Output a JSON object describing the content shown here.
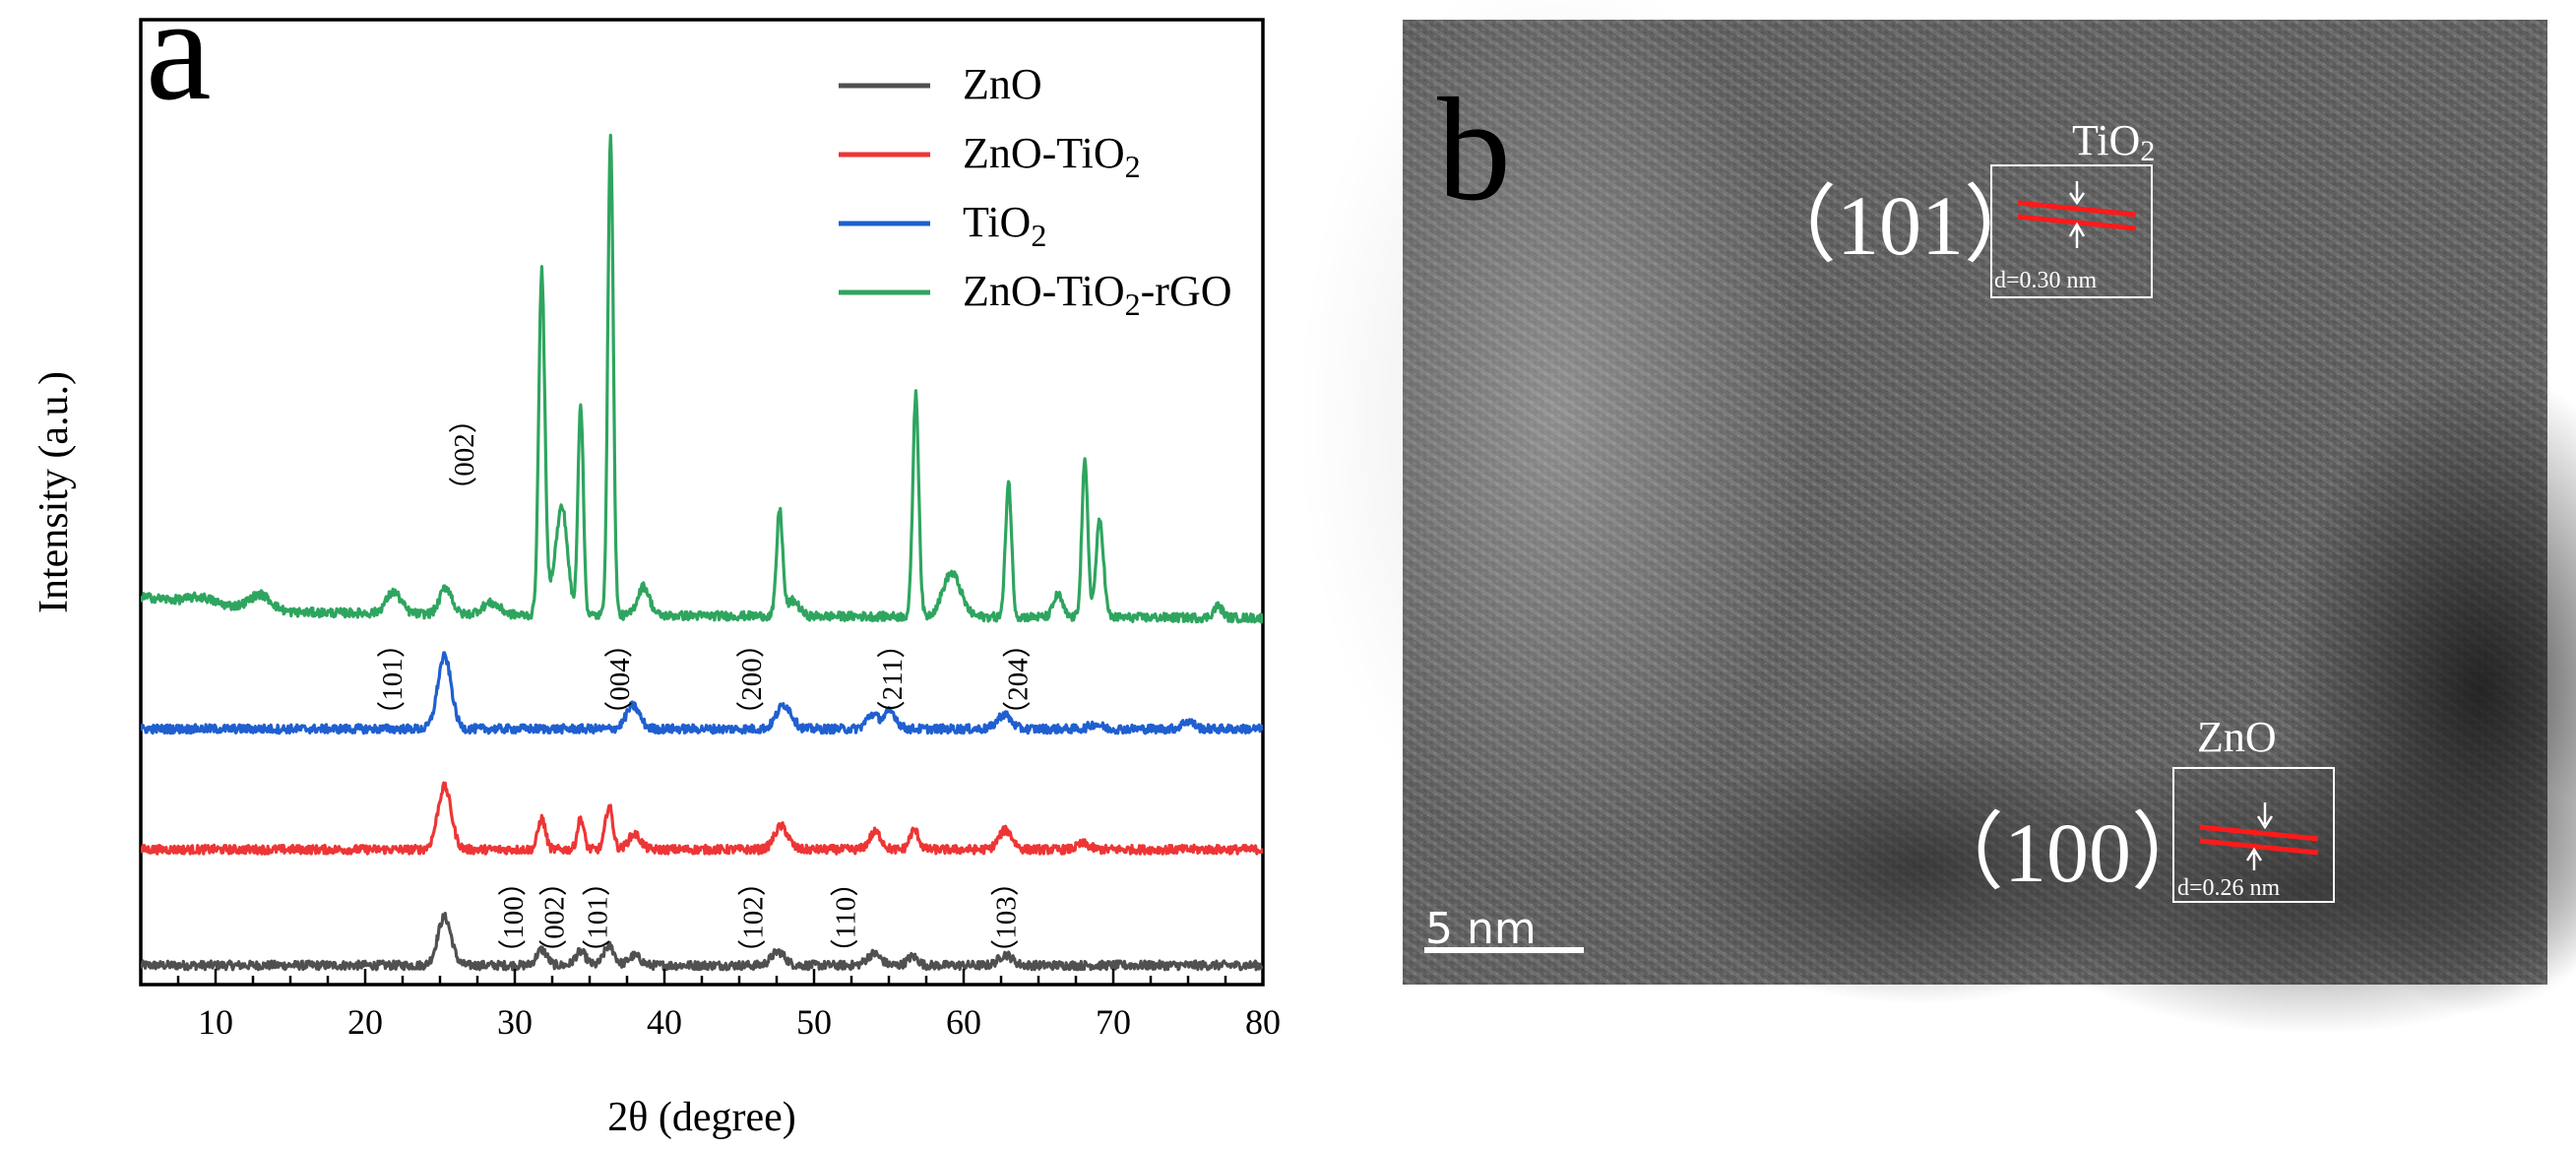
{
  "chart_data": {
    "type": "line",
    "panel": "a",
    "xlabel": "2θ (degree)",
    "ylabel": "Intensity (a.u.)",
    "xlim": [
      5,
      80
    ],
    "ylim": [
      0,
      100
    ],
    "xticks": [
      10,
      20,
      30,
      40,
      50,
      60,
      70,
      80
    ],
    "legend_position": "top-right",
    "series": [
      {
        "name": "ZnO",
        "legend_main": "ZnO",
        "legend_sub": "",
        "legend_tail": "",
        "color": "#505050",
        "baseline": 2.0,
        "peaks": [
          [
            25.3,
            5.0,
            0.45
          ],
          [
            31.8,
            1.6,
            0.35
          ],
          [
            34.4,
            1.4,
            0.35
          ],
          [
            36.3,
            2.0,
            0.35
          ],
          [
            38.0,
            1.0,
            0.4
          ],
          [
            47.6,
            1.4,
            0.45
          ],
          [
            54.0,
            1.2,
            0.45
          ],
          [
            56.6,
            0.9,
            0.35
          ],
          [
            62.8,
            1.1,
            0.45
          ]
        ]
      },
      {
        "name": "ZnO-TiO2",
        "legend_main": "ZnO-TiO",
        "legend_sub": "2",
        "legend_tail": "",
        "color": "#ee3535",
        "baseline": 14.0,
        "peaks": [
          [
            25.3,
            6.5,
            0.45
          ],
          [
            31.8,
            3.2,
            0.25
          ],
          [
            34.4,
            3.2,
            0.22
          ],
          [
            36.3,
            4.5,
            0.25
          ],
          [
            38.0,
            1.6,
            0.4
          ],
          [
            47.8,
            2.4,
            0.45
          ],
          [
            54.1,
            1.8,
            0.4
          ],
          [
            56.7,
            2.0,
            0.3
          ],
          [
            62.8,
            2.0,
            0.45
          ],
          [
            68.0,
            0.6,
            0.4
          ]
        ]
      },
      {
        "name": "TiO2",
        "legend_main": "TiO",
        "legend_sub": "2",
        "legend_tail": "",
        "color": "#1f5fd0",
        "baseline": 26.5,
        "peaks": [
          [
            25.3,
            7.5,
            0.45
          ],
          [
            37.9,
            2.4,
            0.45
          ],
          [
            48.0,
            2.5,
            0.5
          ],
          [
            53.9,
            1.5,
            0.4
          ],
          [
            55.1,
            1.8,
            0.4
          ],
          [
            62.7,
            1.5,
            0.45
          ],
          [
            68.8,
            0.5,
            0.4
          ],
          [
            75.0,
            0.8,
            0.4
          ]
        ]
      },
      {
        "name": "ZnO-TiO2-rGO",
        "legend_main": "ZnO-TiO",
        "legend_sub": "2",
        "legend_tail": "-rGO",
        "color": "#2ea55f",
        "baseline": 38.0,
        "slope": [
          [
            5,
            2.2
          ],
          [
            15,
            0.6
          ],
          [
            30,
            0.3
          ],
          [
            80,
            0.0
          ]
        ],
        "peaks": [
          [
            9.0,
            0.6,
            0.8
          ],
          [
            13.0,
            1.5,
            0.7
          ],
          [
            21.9,
            2.2,
            0.5
          ],
          [
            25.4,
            2.8,
            0.4
          ],
          [
            28.4,
            1.2,
            0.6
          ],
          [
            31.8,
            35.0,
            0.2
          ],
          [
            32.7,
            3.5,
            0.5
          ],
          [
            33.2,
            9.0,
            0.35
          ],
          [
            34.4,
            22.0,
            0.18
          ],
          [
            36.4,
            50.0,
            0.18
          ],
          [
            38.6,
            3.0,
            0.4
          ],
          [
            47.7,
            11.0,
            0.2
          ],
          [
            48.6,
            1.6,
            0.4
          ],
          [
            56.8,
            23.0,
            0.2
          ],
          [
            59.2,
            4.5,
            0.6
          ],
          [
            63.0,
            14.0,
            0.2
          ],
          [
            66.3,
            2.3,
            0.3
          ],
          [
            68.1,
            16.0,
            0.2
          ],
          [
            69.1,
            10.0,
            0.25
          ],
          [
            77.0,
            1.2,
            0.3
          ]
        ]
      }
    ],
    "annotations": [
      {
        "text": "（002）",
        "x": 26.8
      },
      {
        "text": "（101）",
        "x": 22.0
      },
      {
        "text": "（004）",
        "x": 37.2
      },
      {
        "text": "（200）",
        "x": 46.0
      },
      {
        "text": "（211）",
        "x": 55.4
      },
      {
        "text": "（204）",
        "x": 63.8
      },
      {
        "text": "（100）",
        "x": 30.1
      },
      {
        "text": "（002）",
        "x": 32.8
      },
      {
        "text": "（101）",
        "x": 35.7
      },
      {
        "text": "（102）",
        "x": 46.1
      },
      {
        "text": "（110）",
        "x": 52.3
      },
      {
        "text": "（103）",
        "x": 63.0
      }
    ]
  },
  "panel_b": {
    "letter": "b",
    "tio2_label": "TiO",
    "tio2_sub": "2",
    "tio2_plane": "（101）",
    "tio2_spacing": "d=0.30 nm",
    "zno_label": "ZnO",
    "zno_plane": "（100）",
    "zno_spacing": "d=0.26 nm",
    "scale_bar": "5 nm",
    "marker_color": "#ff1a1a"
  }
}
